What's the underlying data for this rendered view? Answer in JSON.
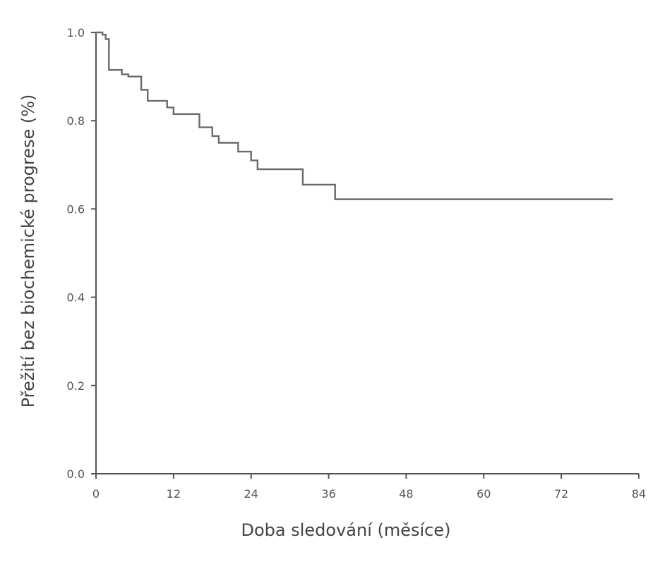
{
  "chart_data": {
    "type": "line",
    "title": "",
    "xlabel": "Doba sledování (měsíce)",
    "ylabel": "Přežití bez biochemické progrese (%)",
    "xlim": [
      0,
      84
    ],
    "ylim": [
      0.0,
      1.0
    ],
    "xticks": [
      0,
      12,
      24,
      36,
      48,
      60,
      72,
      84
    ],
    "yticks": [
      "0.0",
      "0.2",
      "0.4",
      "0.6",
      "0.8",
      "1.0"
    ],
    "grid": false,
    "legend": "none",
    "series": [
      {
        "name": "",
        "step": true,
        "x": [
          0,
          1,
          1.5,
          2,
          4,
          5,
          7,
          8,
          10,
          11,
          12,
          16,
          18,
          19,
          20,
          22,
          24,
          25,
          32,
          37,
          80
        ],
        "y": [
          1.0,
          0.995,
          0.985,
          0.915,
          0.905,
          0.9,
          0.87,
          0.845,
          0.845,
          0.83,
          0.815,
          0.785,
          0.765,
          0.75,
          0.75,
          0.73,
          0.71,
          0.69,
          0.655,
          0.622,
          0.622
        ]
      }
    ]
  }
}
